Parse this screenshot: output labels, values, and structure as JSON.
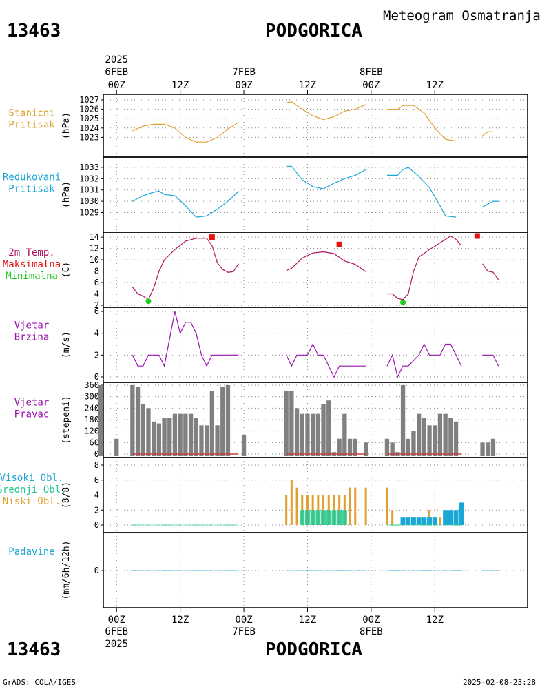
{
  "header": {
    "station_id": "13463",
    "station_name": "PODGORICA",
    "subtitle": "Meteogram Osmatranja"
  },
  "footer": {
    "credit": "GrADS: COLA/IGES",
    "timestamp": "2025-02-08-23:28"
  },
  "top_axis": {
    "year": "2025",
    "days": [
      "6FEB",
      "7FEB",
      "8FEB"
    ],
    "ticks": [
      "00Z",
      "12Z",
      "00Z",
      "12Z",
      "00Z",
      "12Z"
    ]
  },
  "bottom_axis": {
    "year": "2025",
    "days": [
      "6FEB",
      "7FEB",
      "8FEB"
    ],
    "ticks": [
      "00Z",
      "12Z",
      "00Z",
      "12Z",
      "00Z",
      "12Z"
    ]
  },
  "colors": {
    "pressure": "#e0a030",
    "reduced": "#1aa7d6",
    "temp": "#b0105e",
    "tmax": "#e81010",
    "tmin": "#1acd1a",
    "wind": "#9a10b0",
    "bars": "#808080",
    "high_cloud": "#1aa7d6",
    "mid_cloud": "#20c890",
    "low_cloud": "#e0a030",
    "precip": "#1aa7d6"
  },
  "chart_data": [
    {
      "type": "line",
      "label": [
        "Stanicni",
        "Pritisak"
      ],
      "ylabel": "(hPa)",
      "ylim": [
        1022,
        1027
      ],
      "yticks": [
        1023,
        1024,
        1025,
        1026,
        1027
      ],
      "x_hours": [
        3,
        5,
        7,
        9,
        11,
        13,
        15,
        17,
        19,
        21,
        23,
        27,
        29,
        31,
        33,
        35,
        37,
        39,
        41,
        43,
        45,
        47,
        51,
        53,
        55,
        57,
        59,
        61,
        63,
        65,
        67,
        69,
        71,
        73,
        75,
        77
      ],
      "segments": [
        [
          [
            3,
            1023.7
          ],
          [
            5,
            1024.2
          ],
          [
            7,
            1024.4
          ],
          [
            9,
            1024.4
          ],
          [
            11,
            1024.0
          ],
          [
            13,
            1023.0
          ],
          [
            15,
            1022.5
          ],
          [
            17,
            1022.5
          ],
          [
            19,
            1023.0
          ],
          [
            21,
            1023.9
          ],
          [
            23,
            1024.6
          ]
        ],
        [
          [
            32,
            1026.7
          ],
          [
            33,
            1026.8
          ],
          [
            35,
            1026.0
          ],
          [
            37,
            1025.3
          ],
          [
            39,
            1024.9
          ],
          [
            41,
            1025.2
          ],
          [
            43,
            1025.8
          ],
          [
            45,
            1026.0
          ],
          [
            47,
            1026.5
          ]
        ],
        [
          [
            51,
            1026.0
          ],
          [
            53,
            1026.0
          ],
          [
            54,
            1026.4
          ],
          [
            56,
            1026.4
          ],
          [
            58,
            1025.6
          ],
          [
            60,
            1024.0
          ],
          [
            62,
            1022.8
          ],
          [
            64,
            1022.6
          ]
        ],
        [
          [
            69,
            1023.2
          ],
          [
            70,
            1023.6
          ],
          [
            71,
            1023.6
          ]
        ]
      ]
    },
    {
      "type": "line",
      "label": [
        "Redukovani",
        "Pritisak"
      ],
      "ylabel": "(hPa)",
      "ylim": [
        1028.3,
        1033.3
      ],
      "yticks": [
        1029,
        1030,
        1031,
        1032,
        1033
      ],
      "segments": [
        [
          [
            3,
            1030.0
          ],
          [
            5,
            1030.5
          ],
          [
            7,
            1030.8
          ],
          [
            8,
            1030.9
          ],
          [
            9,
            1030.6
          ],
          [
            11,
            1030.5
          ],
          [
            13,
            1029.6
          ],
          [
            15,
            1028.6
          ],
          [
            17,
            1028.7
          ],
          [
            19,
            1029.3
          ],
          [
            21,
            1030.0
          ],
          [
            23,
            1030.9
          ]
        ],
        [
          [
            32,
            1033.1
          ],
          [
            33,
            1033.1
          ],
          [
            35,
            1031.9
          ],
          [
            37,
            1031.3
          ],
          [
            39,
            1031.1
          ],
          [
            41,
            1031.6
          ],
          [
            43,
            1032.0
          ],
          [
            45,
            1032.3
          ],
          [
            47,
            1032.8
          ]
        ],
        [
          [
            51,
            1032.3
          ],
          [
            53,
            1032.3
          ],
          [
            54,
            1032.8
          ],
          [
            55,
            1033.0
          ],
          [
            57,
            1032.2
          ],
          [
            59,
            1031.2
          ],
          [
            61,
            1029.6
          ],
          [
            62,
            1028.7
          ],
          [
            64,
            1028.6
          ]
        ],
        [
          [
            69,
            1029.5
          ],
          [
            71,
            1030.0
          ],
          [
            72,
            1030.0
          ]
        ]
      ]
    },
    {
      "type": "line",
      "label": [
        "2m Temp.",
        "Maksimalna",
        "Minimalna"
      ],
      "ylabel": "(C)",
      "ylim": [
        2,
        14.5
      ],
      "yticks": [
        2,
        4,
        6,
        8,
        10,
        12,
        14
      ],
      "segments": [
        [
          [
            3,
            5.2
          ],
          [
            4,
            4.0
          ],
          [
            5,
            3.6
          ],
          [
            6,
            3.0
          ],
          [
            7,
            5.0
          ],
          [
            8,
            8.0
          ],
          [
            9,
            10.0
          ],
          [
            11,
            11.8
          ],
          [
            13,
            13.3
          ],
          [
            15,
            13.8
          ],
          [
            17,
            13.8
          ],
          [
            18,
            12.5
          ],
          [
            19,
            9.5
          ],
          [
            20,
            8.3
          ],
          [
            21,
            7.8
          ],
          [
            22,
            7.9
          ],
          [
            23,
            9.3
          ]
        ],
        [
          [
            32,
            8.1
          ],
          [
            33,
            8.5
          ],
          [
            35,
            10.3
          ],
          [
            37,
            11.2
          ],
          [
            39,
            11.4
          ],
          [
            41,
            11.1
          ],
          [
            43,
            9.8
          ],
          [
            45,
            9.2
          ],
          [
            47,
            7.9
          ]
        ],
        [
          [
            51,
            4.0
          ],
          [
            52,
            4.0
          ],
          [
            53,
            3.2
          ],
          [
            54,
            3.0
          ],
          [
            55,
            4.0
          ],
          [
            56,
            8.0
          ],
          [
            57,
            10.5
          ],
          [
            59,
            11.8
          ],
          [
            61,
            13.0
          ],
          [
            63,
            14.2
          ],
          [
            64,
            13.6
          ],
          [
            65,
            12.5
          ]
        ],
        [
          [
            69,
            9.3
          ],
          [
            70,
            8.0
          ],
          [
            71,
            7.8
          ],
          [
            72,
            6.5
          ]
        ]
      ],
      "tmax": [
        [
          18,
          14.0
        ],
        [
          42,
          12.7
        ],
        [
          68,
          14.2
        ]
      ],
      "tmin": [
        [
          6,
          2.7
        ],
        [
          54,
          2.5
        ]
      ]
    },
    {
      "type": "line",
      "label": [
        "Vjetar",
        "Brzina"
      ],
      "ylabel": "(m/s)",
      "ylim": [
        0,
        6
      ],
      "yticks": [
        0,
        2,
        4,
        6
      ],
      "segments": [
        [
          [
            3,
            2
          ],
          [
            4,
            1
          ],
          [
            5,
            1
          ],
          [
            6,
            2
          ],
          [
            7,
            2
          ],
          [
            8,
            2
          ],
          [
            9,
            1
          ],
          [
            11,
            6
          ],
          [
            12,
            4
          ],
          [
            13,
            5
          ],
          [
            14,
            5
          ],
          [
            15,
            4
          ],
          [
            16,
            2
          ],
          [
            17,
            1
          ],
          [
            18,
            2
          ],
          [
            20,
            2
          ],
          [
            23,
            2
          ]
        ],
        [
          [
            32,
            2
          ],
          [
            33,
            1
          ],
          [
            34,
            2
          ],
          [
            36,
            2
          ],
          [
            37,
            3
          ],
          [
            38,
            2
          ],
          [
            39,
            2
          ],
          [
            40,
            1
          ],
          [
            41,
            0
          ],
          [
            42,
            1
          ],
          [
            44,
            1
          ],
          [
            47,
            1
          ]
        ],
        [
          [
            51,
            1
          ],
          [
            52,
            2
          ],
          [
            53,
            0
          ],
          [
            54,
            1
          ],
          [
            55,
            1
          ],
          [
            57,
            2
          ],
          [
            58,
            3
          ],
          [
            59,
            2
          ],
          [
            61,
            2
          ],
          [
            62,
            3
          ],
          [
            63,
            3
          ],
          [
            64,
            2
          ],
          [
            65,
            1
          ]
        ],
        [
          [
            69,
            2
          ],
          [
            71,
            2
          ],
          [
            72,
            1
          ]
        ]
      ]
    },
    {
      "type": "bar",
      "label": [
        "Vjetar",
        "Pravac"
      ],
      "ylabel": "(stepeni)",
      "ylim": [
        0,
        360
      ],
      "yticks": [
        0,
        60,
        120,
        180,
        240,
        300,
        360
      ],
      "x_hours": [
        -3,
        0,
        3,
        4,
        5,
        6,
        7,
        8,
        9,
        10,
        11,
        12,
        13,
        14,
        15,
        16,
        17,
        18,
        19,
        20,
        21,
        24,
        32,
        33,
        34,
        35,
        36,
        37,
        38,
        39,
        40,
        41,
        42,
        43,
        44,
        45,
        47,
        51,
        52,
        53,
        54,
        55,
        56,
        57,
        58,
        59,
        60,
        61,
        62,
        63,
        64,
        69,
        70,
        71
      ],
      "values": [
        360,
        80,
        360,
        350,
        260,
        240,
        170,
        160,
        190,
        190,
        210,
        210,
        210,
        210,
        190,
        150,
        150,
        330,
        150,
        350,
        360,
        100,
        330,
        330,
        240,
        210,
        210,
        210,
        210,
        260,
        280,
        10,
        80,
        210,
        80,
        80,
        60,
        80,
        60,
        10,
        360,
        80,
        120,
        210,
        190,
        150,
        150,
        210,
        210,
        190,
        170,
        60,
        60,
        80
      ]
    },
    {
      "type": "bar",
      "label": [
        "Visoki Obl.",
        "Srednji Obl.",
        "Niski Obl."
      ],
      "ylabel": "(8/8)",
      "ylim": [
        0,
        8
      ],
      "yticks": [
        0,
        2,
        4,
        6,
        8
      ],
      "low_x": [
        32,
        33,
        34,
        35,
        36,
        37,
        38,
        39,
        40,
        41,
        42,
        43,
        44,
        45,
        47,
        51,
        52,
        59,
        61,
        62,
        63,
        64
      ],
      "low_values": [
        4,
        6,
        5,
        4,
        4,
        4,
        4,
        4,
        4,
        4,
        4,
        4,
        5,
        5,
        5,
        5,
        2,
        2,
        1,
        1,
        1,
        1
      ],
      "mid_x": [
        35,
        36,
        37,
        38,
        39,
        40,
        41,
        42,
        43
      ],
      "mid_values": [
        2,
        2,
        2,
        2,
        2,
        2,
        2,
        2,
        2
      ],
      "high_x": [
        54,
        55,
        56,
        57,
        58,
        59,
        60,
        62,
        63,
        64,
        65
      ],
      "high_values": [
        1,
        1,
        1,
        1,
        1,
        1,
        1,
        2,
        2,
        2,
        3
      ]
    },
    {
      "type": "bar",
      "label": [
        "Padavine"
      ],
      "ylabel": "(mm/6h/12h)",
      "ylim": [
        -1,
        1
      ],
      "yticks": [
        0
      ],
      "values_note": [
        0
      ]
    }
  ]
}
